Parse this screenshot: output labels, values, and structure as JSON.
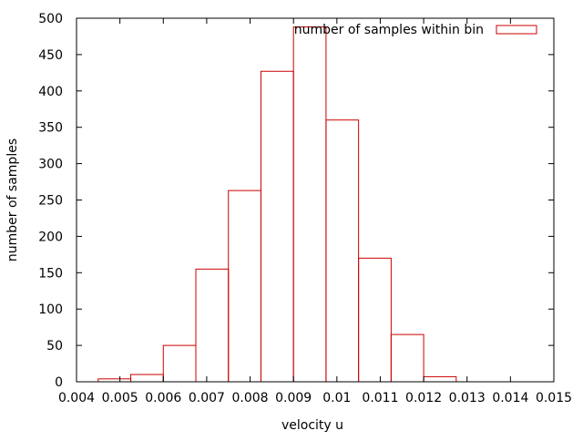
{
  "chart_data": {
    "type": "bar",
    "style": "histogram-outline",
    "xlabel": "velocity u",
    "ylabel": "number of samples",
    "xlim": [
      0.004,
      0.015
    ],
    "ylim": [
      0,
      500
    ],
    "x_ticks": [
      0.004,
      0.005,
      0.006,
      0.007,
      0.008,
      0.009,
      0.01,
      0.011,
      0.012,
      0.013,
      0.014,
      0.015
    ],
    "x_tick_labels": [
      "0.004",
      "0.005",
      "0.006",
      "0.007",
      "0.008",
      "0.009",
      "0.01",
      "0.011",
      "0.012",
      "0.013",
      "0.014",
      "0.015"
    ],
    "y_ticks": [
      0,
      50,
      100,
      150,
      200,
      250,
      300,
      350,
      400,
      450,
      500
    ],
    "y_tick_labels": [
      "0",
      "50",
      "100",
      "150",
      "200",
      "250",
      "300",
      "350",
      "400",
      "450",
      "500"
    ],
    "grid": false,
    "legend": {
      "position": "top-right",
      "entries": [
        "number of samples within bin"
      ]
    },
    "series": [
      {
        "name": "number of samples within bin",
        "color": "#cc0000",
        "bins": [
          {
            "x0": 0.0045,
            "x1": 0.00525,
            "value": 4
          },
          {
            "x0": 0.00525,
            "x1": 0.006,
            "value": 10
          },
          {
            "x0": 0.006,
            "x1": 0.00675,
            "value": 50
          },
          {
            "x0": 0.00675,
            "x1": 0.0075,
            "value": 155
          },
          {
            "x0": 0.0075,
            "x1": 0.00825,
            "value": 263
          },
          {
            "x0": 0.00825,
            "x1": 0.009,
            "value": 427
          },
          {
            "x0": 0.009,
            "x1": 0.00975,
            "value": 488
          },
          {
            "x0": 0.00975,
            "x1": 0.0105,
            "value": 360
          },
          {
            "x0": 0.0105,
            "x1": 0.01125,
            "value": 170
          },
          {
            "x0": 0.01125,
            "x1": 0.012,
            "value": 65
          },
          {
            "x0": 0.012,
            "x1": 0.01275,
            "value": 7
          }
        ]
      }
    ]
  }
}
